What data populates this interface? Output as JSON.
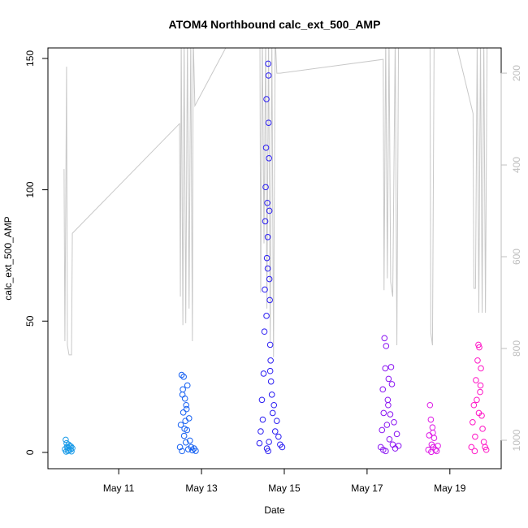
{
  "chart_data": {
    "type": "scatter",
    "title": "ATOM4 Northbound calc_ext_500_AMP",
    "x_label": "Date",
    "y_label": "calc_ext_500_AMP",
    "xlim": [
      9.29,
      20.24
    ],
    "ylim": [
      -6.2,
      154
    ],
    "y2lim": [
      1062,
      145
    ],
    "xticks": [
      {
        "value": 11,
        "label": "May 11"
      },
      {
        "value": 13,
        "label": "May 13"
      },
      {
        "value": 15,
        "label": "May 15"
      },
      {
        "value": 17,
        "label": "May 17"
      },
      {
        "value": 19,
        "label": "May 19"
      }
    ],
    "yticks": [
      0,
      50,
      100,
      150
    ],
    "y2ticks": [
      200,
      400,
      600,
      800,
      1000
    ],
    "series": [
      {
        "type": "line",
        "axis": "y2",
        "color": "#c8c8c8",
        "x": [
          9.68,
          9.7,
          9.74,
          9.76,
          9.8,
          9.86,
          9.88,
          12.47,
          12.49,
          12.51,
          12.55,
          12.58,
          12.62,
          12.66,
          12.7,
          12.74,
          12.78,
          12.8,
          12.84,
          13.68,
          13.82,
          14.41,
          14.43,
          14.47,
          14.51,
          14.55,
          14.58,
          14.62,
          14.66,
          14.7,
          14.74,
          14.78,
          14.82,
          14.9,
          17.39,
          17.41,
          17.45,
          17.49,
          17.53,
          17.57,
          17.62,
          17.68,
          17.72,
          17.76,
          18.52,
          18.54,
          18.58,
          18.62,
          19.11,
          19.56,
          19.58,
          19.62,
          19.66,
          19.7,
          19.74,
          19.78,
          19.82,
          19.86,
          19.9
        ],
        "values": [
          409,
          784,
          186,
          793,
          814,
          814,
          549,
          310,
          687,
          120,
          749,
          120,
          745,
          120,
          713,
          120,
          784,
          120,
          271,
          129,
          76,
          76,
          678,
          120,
          571,
          120,
          713,
          120,
          784,
          120,
          819,
          120,
          200,
          200,
          170,
          673,
          120,
          647,
          120,
          655,
          687,
          120,
          793,
          120,
          120,
          766,
          793,
          120,
          120,
          288,
          669,
          669,
          120,
          722,
          120,
          722,
          120,
          722,
          120
        ]
      },
      {
        "color": "#1a9be8",
        "x": [
          9.7,
          9.72,
          9.74,
          9.75,
          9.77,
          9.78,
          9.8,
          9.82,
          9.84,
          9.86,
          9.88,
          9.73,
          9.79,
          9.85
        ],
        "values": [
          1.2,
          4.8,
          3.5,
          2.1,
          0.6,
          1.8,
          0.9,
          2.5,
          1.1,
          0.4,
          1.6,
          0.3,
          3.0,
          2.2
        ]
      },
      {
        "color": "#1560f2",
        "x": [
          12.48,
          12.5,
          12.52,
          12.53,
          12.55,
          12.56,
          12.57,
          12.58,
          12.6,
          12.61,
          12.62,
          12.63,
          12.65,
          12.66,
          12.68,
          12.7,
          12.72,
          12.75,
          12.78,
          12.82,
          12.86,
          12.54,
          12.59,
          12.64
        ],
        "values": [
          2.0,
          10.5,
          29.5,
          0.5,
          24.0,
          15.2,
          28.8,
          6.3,
          20.5,
          12.0,
          3.8,
          18.0,
          8.5,
          25.5,
          1.2,
          13.0,
          4.5,
          2.0,
          0.8,
          1.5,
          0.6,
          22.0,
          9.0,
          16.5
        ]
      },
      {
        "color": "#2b1ef2",
        "x": [
          14.4,
          14.43,
          14.46,
          14.48,
          14.5,
          14.52,
          14.53,
          14.54,
          14.55,
          14.56,
          14.57,
          14.58,
          14.59,
          14.6,
          14.61,
          14.62,
          14.63,
          14.64,
          14.65,
          14.66,
          14.67,
          14.68,
          14.7,
          14.72,
          14.75,
          14.78,
          14.82,
          14.86,
          14.9,
          14.95,
          14.57,
          14.6,
          14.62,
          14.64,
          14.66,
          14.58,
          14.61,
          14.63
        ],
        "values": [
          3.5,
          8.0,
          20.0,
          12.5,
          30.0,
          46.0,
          62.0,
          88.0,
          101.0,
          116.0,
          134.5,
          74.0,
          95.0,
          82.0,
          148.0,
          125.5,
          112.0,
          66.0,
          58.0,
          41.0,
          35.0,
          27.0,
          22.0,
          15.0,
          18.0,
          8.0,
          12.0,
          6.0,
          3.0,
          2.0,
          52.0,
          70.0,
          143.5,
          92.0,
          31.0,
          1.5,
          0.5,
          4.0
        ]
      },
      {
        "color": "#8a14f2",
        "x": [
          17.33,
          17.36,
          17.38,
          17.4,
          17.42,
          17.44,
          17.46,
          17.48,
          17.5,
          17.52,
          17.54,
          17.56,
          17.58,
          17.6,
          17.62,
          17.65,
          17.68,
          17.72,
          17.76,
          17.45,
          17.51,
          17.39
        ],
        "values": [
          2.0,
          8.5,
          24.0,
          15.0,
          43.5,
          32.0,
          40.5,
          10.5,
          20.0,
          28.0,
          5.0,
          14.5,
          32.5,
          26.0,
          3.0,
          11.5,
          1.5,
          7.0,
          2.5,
          0.5,
          18.0,
          1.0
        ]
      },
      {
        "color": "#de18e6",
        "x": [
          18.48,
          18.5,
          18.52,
          18.54,
          18.56,
          18.58,
          18.6,
          18.62,
          18.65,
          18.68,
          18.71,
          18.55,
          18.59
        ],
        "values": [
          1.0,
          6.5,
          18.0,
          12.5,
          3.0,
          9.5,
          2.0,
          5.5,
          1.0,
          0.5,
          2.5,
          0.2,
          7.5
        ]
      },
      {
        "color": "#ff14c6",
        "x": [
          19.52,
          19.55,
          19.58,
          19.61,
          19.63,
          19.65,
          19.67,
          19.69,
          19.71,
          19.73,
          19.75,
          19.77,
          19.79,
          19.82,
          19.85,
          19.88,
          19.6,
          19.7,
          19.74
        ],
        "values": [
          2.0,
          11.5,
          18.0,
          6.0,
          27.5,
          20.0,
          35.0,
          41.0,
          40.0,
          23.0,
          32.0,
          14.0,
          9.0,
          4.0,
          2.0,
          1.0,
          0.5,
          15.0,
          25.5
        ]
      }
    ]
  }
}
